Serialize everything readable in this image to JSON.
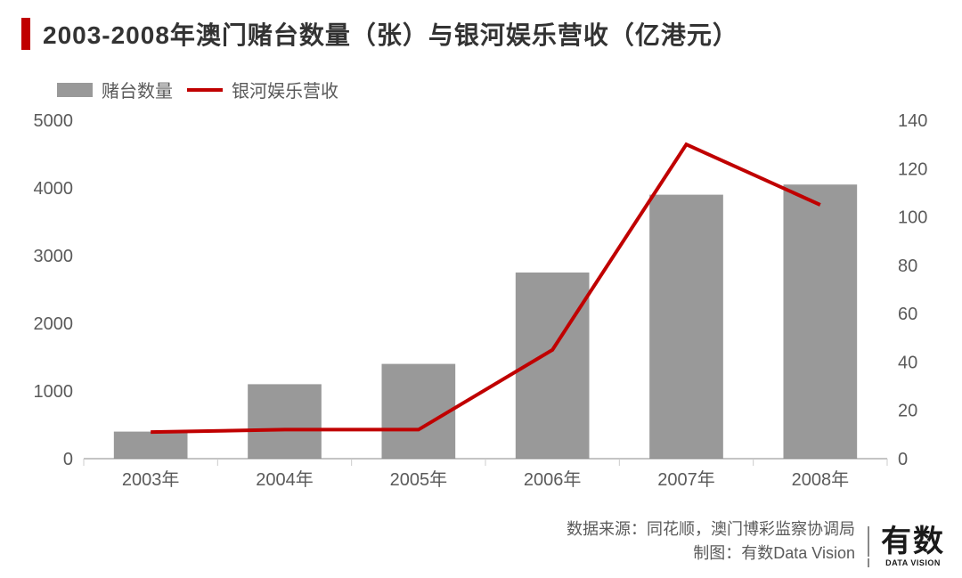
{
  "chart": {
    "type": "bar+line-dual-axis",
    "title": "2003-2008年澳门赌台数量（张）与银河娱乐营收（亿港元）",
    "title_color": "#333333",
    "title_fontsize": 28,
    "accent_color": "#c00000",
    "background_color": "#ffffff",
    "grid_color": "#cccccc",
    "categories": [
      "2003年",
      "2004年",
      "2005年",
      "2006年",
      "2007年",
      "2008年"
    ],
    "series_bar": {
      "name": "赌台数量",
      "color": "#999999",
      "values": [
        400,
        1100,
        1400,
        2750,
        3900,
        4050
      ],
      "axis": "left",
      "bar_width_ratio": 0.55
    },
    "series_line": {
      "name": "银河娱乐营收",
      "color": "#c00000",
      "line_width": 4,
      "values": [
        11,
        12,
        12,
        45,
        130,
        105
      ],
      "axis": "right"
    },
    "y_left": {
      "min": 0,
      "max": 5000,
      "step": 1000,
      "label_fontsize": 20,
      "label_color": "#5a5a5a"
    },
    "y_right": {
      "min": 0,
      "max": 140,
      "step": 20,
      "label_fontsize": 20,
      "label_color": "#5a5a5a"
    },
    "x_axis": {
      "label_fontsize": 20,
      "label_color": "#5a5a5a",
      "tick_length": 8
    }
  },
  "legend": {
    "bar_label": "赌台数量",
    "line_label": "银河娱乐营收"
  },
  "footer": {
    "source_line": "数据来源：同花顺，澳门博彩监察协调局",
    "credit_line": "制图：有数Data Vision"
  },
  "logo": {
    "main": "有数",
    "sub": "DATA VISION"
  }
}
